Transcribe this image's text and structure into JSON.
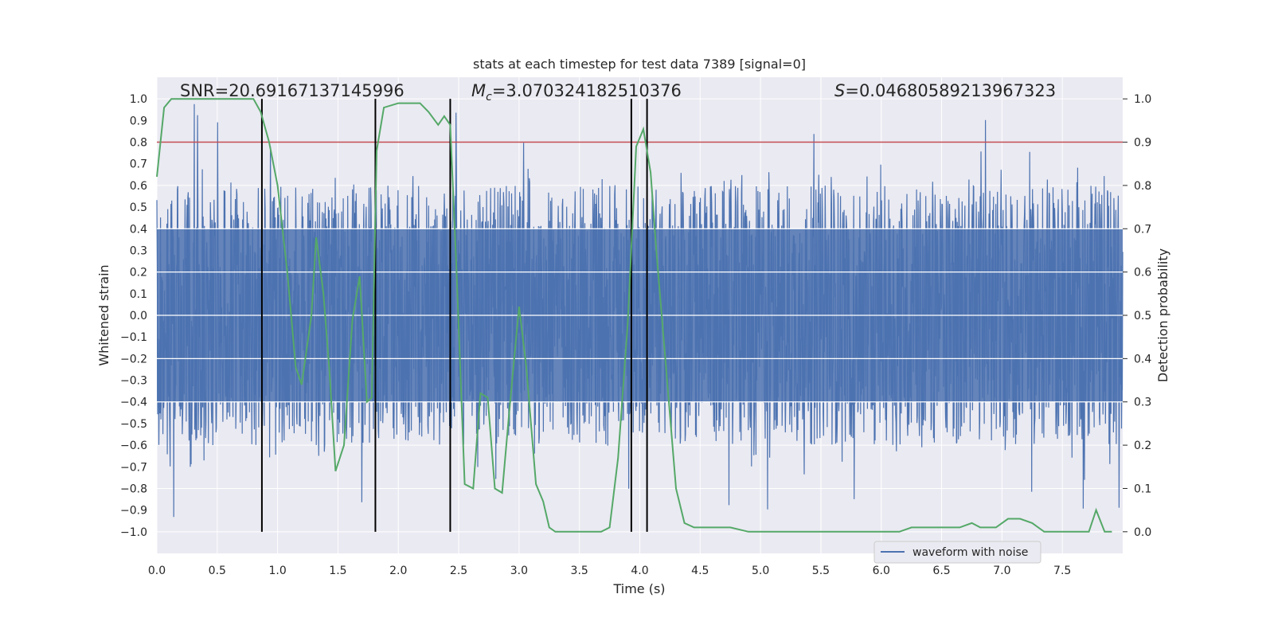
{
  "chart_data": {
    "type": "line",
    "title": "stats at each timestep for test data 7389 [signal=0]",
    "xlabel": "Time (s)",
    "ylabel": "Whitened strain",
    "y2label": "Detection probability",
    "xlim": [
      0.0,
      8.0
    ],
    "ylim": [
      -1.1,
      1.1
    ],
    "y2lim": [
      -0.05,
      1.05
    ],
    "xticks": [
      0.0,
      0.5,
      1.0,
      1.5,
      2.0,
      2.5,
      3.0,
      3.5,
      4.0,
      4.5,
      5.0,
      5.5,
      6.0,
      6.5,
      7.0,
      7.5
    ],
    "xtick_labels": [
      "0.0",
      "0.5",
      "1.0",
      "1.5",
      "2.0",
      "2.5",
      "3.0",
      "3.5",
      "4.0",
      "4.5",
      "5.0",
      "5.5",
      "6.0",
      "6.5",
      "7.0",
      "7.5"
    ],
    "yticks": [
      1.0,
      0.9,
      0.8,
      0.7,
      0.6,
      0.5,
      0.4,
      0.3,
      0.2,
      0.1,
      0.0,
      -0.1,
      -0.2,
      -0.3,
      -0.4,
      -0.5,
      -0.6,
      -0.7,
      -0.8,
      -0.9,
      -1.0
    ],
    "ytick_labels": [
      "1.0",
      "0.9",
      "0.8",
      "0.7",
      "0.6",
      "0.5",
      "0.4",
      "0.3",
      "0.2",
      "0.1",
      "0.0",
      "−0.1",
      "−0.2",
      "−0.3",
      "−0.4",
      "−0.5",
      "−0.6",
      "−0.7",
      "−0.8",
      "−0.9",
      "−1.0"
    ],
    "y2ticks": [
      1.0,
      0.9,
      0.8,
      0.7,
      0.6,
      0.5,
      0.4,
      0.3,
      0.2,
      0.1,
      0.0
    ],
    "y2tick_labels": [
      "1.0",
      "0.9",
      "0.8",
      "0.7",
      "0.6",
      "0.5",
      "0.4",
      "0.3",
      "0.2",
      "0.1",
      "0.0"
    ],
    "annotations": {
      "snr": "SNR=20.69167137145996",
      "mc_symbol": "M",
      "mc_sub": "c",
      "mc_value": "=3.070324182510376",
      "s_symbol": "S",
      "s_value": "=0.04680589213967323"
    },
    "legend": {
      "label": "waveform with noise",
      "location": "lower-right"
    },
    "threshold": {
      "value": 0.8,
      "color": "#c44e52"
    },
    "event_lines": [
      0.87,
      1.81,
      2.43,
      3.93,
      4.06
    ],
    "series": [
      {
        "name": "waveform with noise",
        "color": "#4c72b0",
        "axis": "left",
        "style": "dense-noise",
        "envelope_typical": 0.6,
        "envelope_max": 0.99,
        "envelope_min": -0.99
      },
      {
        "name": "detection probability",
        "color": "#55a868",
        "axis": "right",
        "x": [
          0.0,
          0.06,
          0.12,
          0.25,
          0.5,
          0.8,
          0.86,
          0.93,
          1.0,
          1.08,
          1.15,
          1.2,
          1.28,
          1.32,
          1.38,
          1.43,
          1.48,
          1.55,
          1.62,
          1.68,
          1.74,
          1.78,
          1.82,
          1.88,
          2.0,
          2.1,
          2.18,
          2.25,
          2.33,
          2.38,
          2.43,
          2.48,
          2.55,
          2.62,
          2.68,
          2.74,
          2.8,
          2.86,
          2.92,
          3.0,
          3.06,
          3.14,
          3.2,
          3.25,
          3.3,
          3.38,
          3.5,
          3.58,
          3.68,
          3.75,
          3.82,
          3.9,
          3.97,
          4.03,
          4.09,
          4.14,
          4.22,
          4.3,
          4.37,
          4.45,
          4.55,
          4.65,
          4.75,
          4.9,
          5.1,
          5.3,
          5.5,
          5.7,
          5.85,
          6.0,
          6.15,
          6.25,
          6.35,
          6.45,
          6.55,
          6.65,
          6.75,
          6.82,
          6.88,
          6.95,
          7.05,
          7.15,
          7.25,
          7.35,
          7.45,
          7.55,
          7.65,
          7.72,
          7.78,
          7.85,
          7.91
        ],
        "values": [
          0.82,
          0.98,
          1.0,
          1.0,
          1.0,
          1.0,
          0.97,
          0.9,
          0.8,
          0.6,
          0.38,
          0.34,
          0.5,
          0.68,
          0.55,
          0.37,
          0.14,
          0.2,
          0.49,
          0.59,
          0.3,
          0.31,
          0.88,
          0.98,
          0.99,
          0.99,
          0.99,
          0.97,
          0.94,
          0.96,
          0.94,
          0.62,
          0.11,
          0.1,
          0.32,
          0.31,
          0.1,
          0.09,
          0.28,
          0.52,
          0.38,
          0.11,
          0.07,
          0.01,
          0.0,
          0.0,
          0.0,
          0.0,
          0.0,
          0.01,
          0.17,
          0.48,
          0.89,
          0.93,
          0.83,
          0.64,
          0.37,
          0.1,
          0.02,
          0.01,
          0.01,
          0.01,
          0.01,
          0.0,
          0.0,
          0.0,
          0.0,
          0.0,
          0.0,
          0.0,
          0.0,
          0.01,
          0.01,
          0.01,
          0.01,
          0.01,
          0.02,
          0.01,
          0.01,
          0.01,
          0.03,
          0.03,
          0.02,
          0.0,
          0.0,
          0.0,
          0.0,
          0.0,
          0.05,
          0.0,
          0.0
        ]
      }
    ]
  }
}
